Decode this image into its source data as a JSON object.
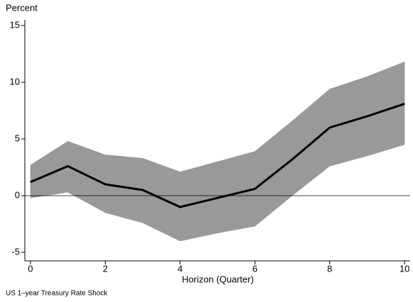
{
  "chart_data": {
    "type": "line",
    "y_label": "Percent",
    "x_label": "Horizon (Quarter)",
    "note": "US 1–year Treasury Rate Shock",
    "x": [
      0,
      1,
      2,
      3,
      4,
      5,
      6,
      7,
      8,
      9,
      10
    ],
    "series": [
      {
        "color": "#000000",
        "values": [
          1.2,
          2.6,
          1.0,
          0.5,
          -1.0,
          -0.2,
          0.6,
          3.2,
          6.0,
          7.0,
          8.1
        ]
      }
    ],
    "band": {
      "color": "#999999",
      "upper": [
        2.7,
        4.8,
        3.6,
        3.3,
        2.1,
        3.0,
        3.9,
        6.6,
        9.4,
        10.5,
        11.8
      ],
      "lower": [
        -0.2,
        0.3,
        -1.5,
        -2.4,
        -4.0,
        -3.3,
        -2.7,
        0.0,
        2.6,
        3.5,
        4.5
      ]
    },
    "reference_line": 0,
    "xlim": [
      -0.15,
      10.15
    ],
    "ylim": [
      -5.75,
      15.5
    ],
    "xticks": [
      0,
      2,
      4,
      6,
      8,
      10
    ],
    "yticks": [
      -5,
      0,
      5,
      10,
      15
    ]
  }
}
